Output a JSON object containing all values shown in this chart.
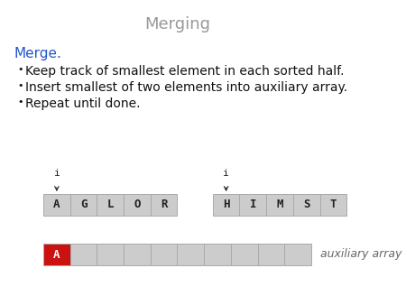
{
  "title": "Merging",
  "title_color": "#999999",
  "title_fontsize": 13,
  "subtitle": "Merge.",
  "subtitle_color": "#2255cc",
  "subtitle_fontsize": 11,
  "bullets": [
    "Keep track of smallest element in each sorted half.",
    "Insert smallest of two elements into auxiliary array.",
    "Repeat until done."
  ],
  "bullet_fontsize": 10,
  "bullet_color": "#111111",
  "left_array": [
    "A",
    "G",
    "L",
    "O",
    "R"
  ],
  "right_array": [
    "H",
    "I",
    "M",
    "S",
    "T"
  ],
  "aux_array_size": 10,
  "aux_filled": [
    "A"
  ],
  "array_bg_color": "#cccccc",
  "array_border_color": "#aaaaaa",
  "red_color": "#cc1111",
  "white_color": "#ffffff",
  "aux_label": "auxiliary array",
  "aux_label_fontsize": 9,
  "aux_label_color": "#666666",
  "pointer_color": "#222222",
  "background_color": "#ffffff"
}
